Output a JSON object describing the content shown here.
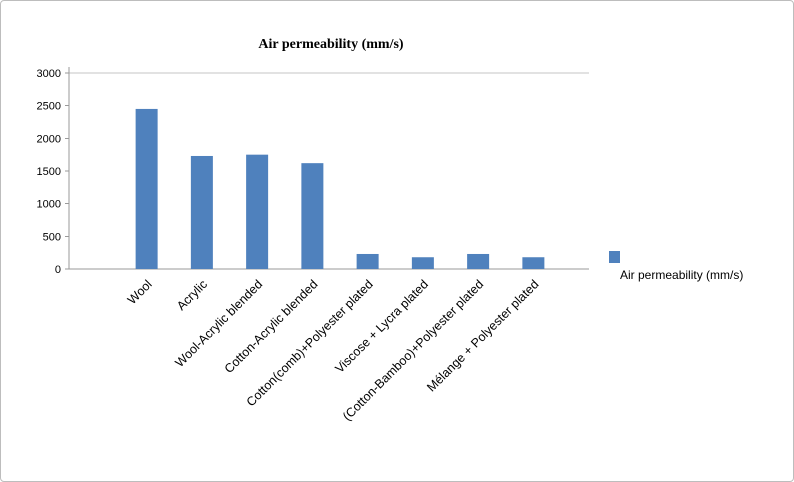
{
  "chart_data": {
    "type": "bar",
    "title": "Air permeability (mm/s)",
    "series_name": "Air permeability (mm/s)",
    "categories": [
      "Wool",
      "Acrylic",
      "Wool-Acrylic blended",
      "Cotton-Acrylic blended",
      "Cotton(comb)+Polyester plated",
      "Viscose + Lycra plated",
      "(Cotton-Bamboo)+Polyester plated",
      "Mélange + Polyester plated"
    ],
    "values": [
      2450,
      1730,
      1750,
      1620,
      230,
      180,
      230,
      180
    ],
    "xlabel": "",
    "ylabel": "",
    "ylim": [
      0,
      3000
    ],
    "yticks": [
      0,
      500,
      1000,
      1500,
      2000,
      2500,
      3000
    ],
    "grid": "top-line-only",
    "legend_position": "right",
    "bar_color": "#4F81BD",
    "axis_color": "#9A9A9A",
    "gridline_color": "#C6C6C6"
  },
  "legend": {
    "label": "Air permeability (mm/s)",
    "swatch_color": "#4F81BD"
  }
}
